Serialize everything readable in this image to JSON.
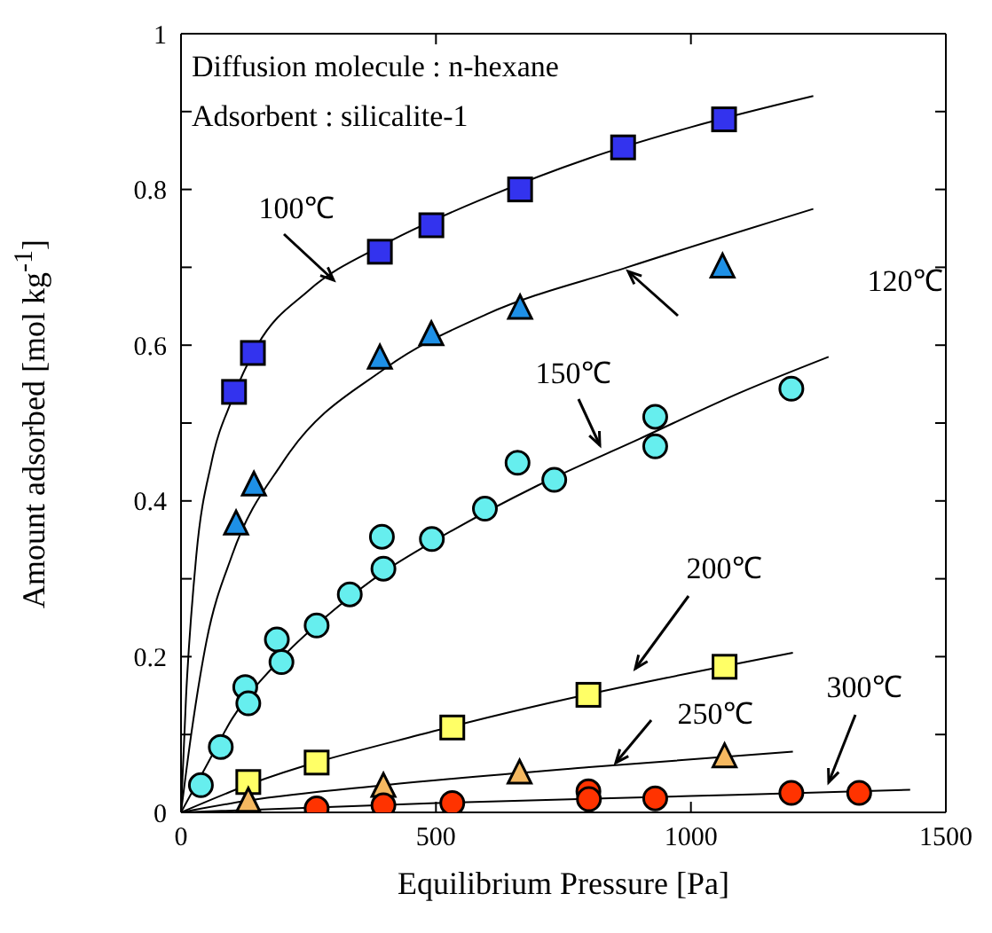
{
  "chart_data": {
    "type": "scatter",
    "xlabel": "Equilibrium Pressure [Pa]",
    "ylabel": "Amount adsorbed [mol kg$^{-1}$]",
    "xlim": [
      0,
      1500
    ],
    "xticks": [
      0,
      500,
      1000,
      1500
    ],
    "ylim": [
      0,
      1
    ],
    "yticks": [
      0,
      {
        "value": 0.1,
        "label": null
      },
      0.2,
      {
        "value": 0.3,
        "label": null
      },
      0.4,
      {
        "value": 0.5,
        "label": null
      },
      0.6,
      {
        "value": 0.7,
        "label": null
      },
      0.8,
      {
        "value": 0.9,
        "label": null
      },
      1
    ],
    "grid": false,
    "legend": false,
    "annotations": [
      "Diffusion molecule : n-hexane",
      "Adsorbent : silicalite-1",
      "100℃",
      "120℃",
      "150℃",
      "200℃",
      "250℃",
      "300℃"
    ],
    "series": [
      {
        "marker": "square",
        "color": "#3333ee",
        "x": [
          104,
          141,
          390,
          491,
          665,
          867,
          1065
        ],
        "values": [
          0.54,
          0.59,
          0.72,
          0.754,
          0.8,
          0.854,
          0.89
        ]
      },
      {
        "marker": "triangle",
        "color": "#1e90e6",
        "x": [
          108,
          143,
          390,
          491,
          665,
          1062
        ],
        "values": [
          0.37,
          0.42,
          0.583,
          0.613,
          0.647,
          0.7
        ]
      },
      {
        "marker": "circle",
        "color": "#66eeee",
        "x": [
          39,
          78,
          126,
          132,
          188,
          197,
          266,
          331,
          397,
          394,
          492,
          596,
          660,
          732,
          930,
          930,
          1197
        ],
        "values": [
          0.035,
          0.084,
          0.161,
          0.14,
          0.222,
          0.193,
          0.24,
          0.28,
          0.313,
          0.354,
          0.351,
          0.39,
          0.449,
          0.427,
          0.47,
          0.508,
          0.544
        ]
      },
      {
        "marker": "square",
        "color": "#ffff66",
        "x": [
          132,
          266,
          532,
          799,
          1066
        ],
        "values": [
          0.039,
          0.064,
          0.109,
          0.151,
          0.187
        ]
      },
      {
        "marker": "triangle",
        "color": "#f5b860",
        "x": [
          132,
          397,
          664,
          1066
        ],
        "values": [
          0.014,
          0.033,
          0.05,
          0.071
        ]
      },
      {
        "marker": "circle",
        "color": "#ff3300",
        "x": [
          266,
          397,
          532,
          799,
          800,
          930,
          1197,
          1330
        ],
        "values": [
          0.005,
          0.009,
          0.012,
          0.027,
          0.017,
          0.018,
          0.025,
          0.025
        ]
      },
      {
        "type": "line",
        "marker": "none",
        "color": "#000000",
        "x": [
          0,
          10,
          30,
          60,
          100,
          150,
          250,
          400,
          600,
          800,
          1000,
          1240
        ],
        "values": [
          0,
          0.15,
          0.33,
          0.45,
          0.53,
          0.6,
          0.67,
          0.73,
          0.79,
          0.84,
          0.88,
          0.92
        ]
      },
      {
        "type": "line",
        "marker": "none",
        "color": "#000000",
        "x": [
          0,
          20,
          50,
          100,
          200,
          400,
          600,
          875,
          1240
        ],
        "values": [
          0,
          0.1,
          0.22,
          0.33,
          0.45,
          0.57,
          0.64,
          0.7,
          0.775
        ]
      },
      {
        "type": "line",
        "marker": "none",
        "color": "#000000",
        "x": [
          0,
          50,
          100,
          200,
          300,
          400,
          500,
          700,
          900,
          1100,
          1270
        ],
        "values": [
          0,
          0.06,
          0.12,
          0.2,
          0.26,
          0.31,
          0.35,
          0.42,
          0.48,
          0.54,
          0.585
        ]
      },
      {
        "type": "line",
        "marker": "none",
        "color": "#000000",
        "x": [
          0,
          130,
          500,
          1200
        ],
        "values": [
          0,
          0.035,
          0.105,
          0.205
        ]
      },
      {
        "type": "line",
        "marker": "none",
        "color": "#000000",
        "x": [
          0,
          130,
          400,
          800,
          1200
        ],
        "values": [
          0,
          0.015,
          0.035,
          0.058,
          0.078
        ]
      },
      {
        "type": "line",
        "marker": "none",
        "color": "#000000",
        "x": [
          0,
          500,
          1000,
          1430
        ],
        "values": [
          0,
          0.012,
          0.021,
          0.029
        ]
      }
    ]
  }
}
